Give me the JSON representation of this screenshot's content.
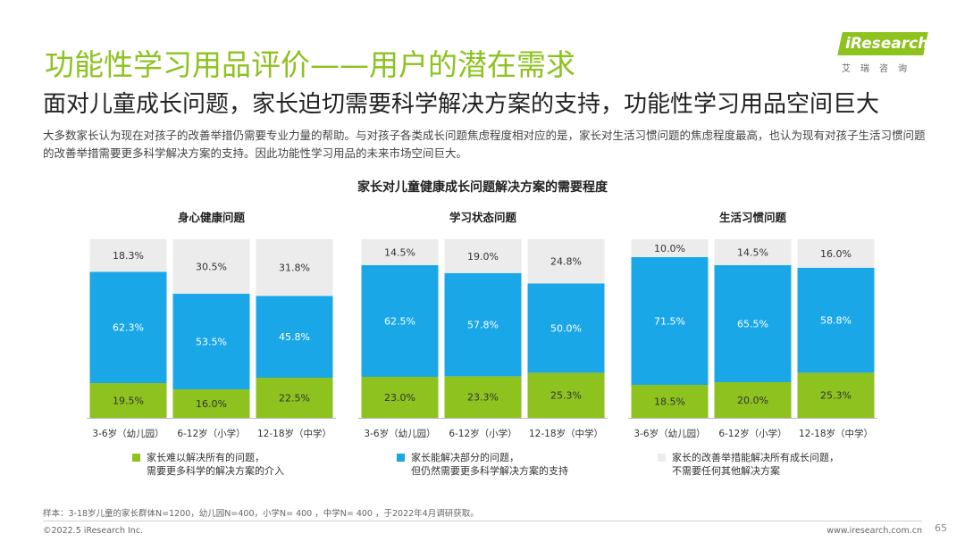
{
  "header": {
    "title": "功能性学习用品评价——用户的潜在需求",
    "subtitle": "面对儿童成长问题，家长迫切需要科学解决方案的支持，功能性学习用品空间巨大",
    "description": "大多数家长认为现在对孩子的改善举措仍需要专业力量的帮助。与对孩子各类成长问题焦虑程度相对应的是，家长对生活习惯问题的焦虑程度最高，也认为现有对孩子生活习惯问题的改善举措需要更多科学解决方案的支持。因此功能性学习用品的未来市场空间巨大。"
  },
  "logo": {
    "word": "iResearch",
    "sub": "艾瑞咨询"
  },
  "colors": {
    "green": "#8dc21f",
    "blue": "#1aa7e8",
    "gray": "#ececec",
    "title_green": "#8dc21f"
  },
  "chart_data": {
    "title": "家长对儿童健康成长问题解决方案的需要程度",
    "type": "bar",
    "stacked": true,
    "categories": [
      "3-6岁（幼儿园）",
      "6-12岁（小学）",
      "12-18岁（中学）"
    ],
    "panels": [
      {
        "title": "身心健康问题",
        "series": [
          {
            "name": "家长难以解决所有的问题，需要更多科学的解决方案的介入",
            "values": [
              19.5,
              16.0,
              22.5
            ],
            "labels": [
              "19.5%",
              "16.0%",
              "22.5%"
            ]
          },
          {
            "name": "家长能解决部分的问题，但仍然需要更多科学解决方案的支持",
            "values": [
              62.3,
              53.5,
              45.8
            ],
            "labels": [
              "62.3%",
              "53.5%",
              "45.8%"
            ]
          },
          {
            "name": "家长的改善举措能解决所有成长问题，不需要任何其他解决方案",
            "values": [
              18.3,
              30.5,
              31.8
            ],
            "labels": [
              "18.3%",
              "30.5%",
              "31.8%"
            ]
          }
        ]
      },
      {
        "title": "学习状态问题",
        "series": [
          {
            "name": "家长难以解决所有的问题，需要更多科学的解决方案的介入",
            "values": [
              23.0,
              23.3,
              25.3
            ],
            "labels": [
              "23.0%",
              "23.3%",
              "25.3%"
            ]
          },
          {
            "name": "家长能解决部分的问题，但仍然需要更多科学解决方案的支持",
            "values": [
              62.5,
              57.8,
              50.0
            ],
            "labels": [
              "62.5%",
              "57.8%",
              "50.0%"
            ]
          },
          {
            "name": "家长的改善举措能解决所有成长问题，不需要任何其他解决方案",
            "values": [
              14.5,
              19.0,
              24.8
            ],
            "labels": [
              "14.5%",
              "19.0%",
              "24.8%"
            ]
          }
        ]
      },
      {
        "title": "生活习惯问题",
        "series": [
          {
            "name": "家长难以解决所有的问题，需要更多科学的解决方案的介入",
            "values": [
              18.5,
              20.0,
              25.3
            ],
            "labels": [
              "18.5%",
              "20.0%",
              "25.3%"
            ]
          },
          {
            "name": "家长能解决部分的问题，但仍然需要更多科学解决方案的支持",
            "values": [
              71.5,
              65.5,
              58.8
            ],
            "labels": [
              "71.5%",
              "65.5%",
              "58.8%"
            ]
          },
          {
            "name": "家长的改善举措能解决所有成长问题，不需要任何其他解决方案",
            "values": [
              10.0,
              14.5,
              16.0
            ],
            "labels": [
              "10.0%",
              "14.5%",
              "16.0%"
            ]
          }
        ]
      }
    ],
    "ylim": [
      0,
      100
    ]
  },
  "legend": [
    {
      "line1": "家长难以解决所有的问题，",
      "line2": "需要更多科学的解决方案的介入",
      "color": "#8dc21f"
    },
    {
      "line1": "家长能解决部分的问题，",
      "line2": "但仍然需要更多科学解决方案的支持",
      "color": "#1aa7e8"
    },
    {
      "line1": "家长的改善举措能解决所有成长问题，",
      "line2": "不需要任何其他解决方案",
      "color": "#ececec"
    }
  ],
  "footer": {
    "note": "样本：3-18岁儿童的家长群体N=1200，幼儿园N=400，小学N= 400 ，中学N= 400 ，于2022年4月调研获取。",
    "copyright": "©2022.5 iResearch Inc.",
    "website": "www.iresearch.com.cn",
    "page": "65"
  }
}
